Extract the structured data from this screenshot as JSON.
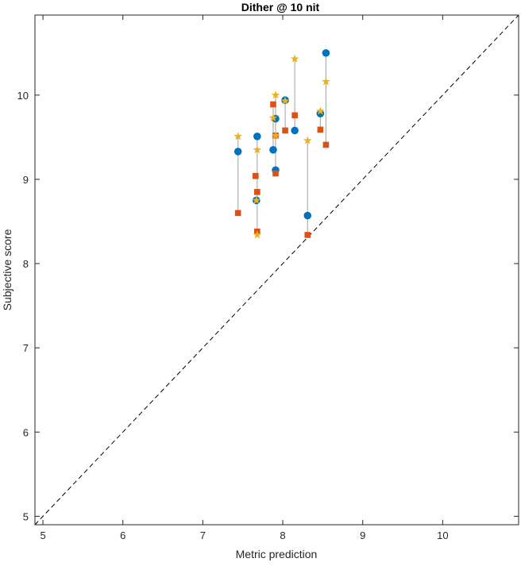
{
  "chart_data": {
    "type": "scatter",
    "title": "Dither @ 10 nit",
    "xlabel": "Metric prediction",
    "ylabel": "Subjective score",
    "xlim": [
      4.9,
      10.95
    ],
    "ylim": [
      4.9,
      10.95
    ],
    "xticks": [
      5,
      6,
      7,
      8,
      9,
      10
    ],
    "yticks": [
      5,
      6,
      7,
      8,
      9,
      10
    ],
    "grid": false,
    "legend": "none",
    "reference_line": {
      "x": [
        4.9,
        10.95
      ],
      "y": [
        4.9,
        10.95
      ],
      "style": "dashed",
      "color": "#000000"
    },
    "series": [
      {
        "marker": "circle",
        "color": "#0072BD",
        "points": [
          [
            7.44,
            9.33
          ],
          [
            7.68,
            9.51
          ],
          [
            7.67,
            8.75
          ],
          [
            7.88,
            9.35
          ],
          [
            7.91,
            9.72
          ],
          [
            7.91,
            9.11
          ],
          [
            8.03,
            9.94
          ],
          [
            8.15,
            9.58
          ],
          [
            8.31,
            8.57
          ],
          [
            8.47,
            9.78
          ],
          [
            8.54,
            10.5
          ]
        ]
      },
      {
        "marker": "square",
        "color": "#D95319",
        "points": [
          [
            7.44,
            8.6
          ],
          [
            7.66,
            9.04
          ],
          [
            7.68,
            8.85
          ],
          [
            7.68,
            8.38
          ],
          [
            7.88,
            9.89
          ],
          [
            7.91,
            9.52
          ],
          [
            7.91,
            9.07
          ],
          [
            8.03,
            9.58
          ],
          [
            8.15,
            9.76
          ],
          [
            8.31,
            8.34
          ],
          [
            8.47,
            9.59
          ],
          [
            8.54,
            9.41
          ]
        ]
      },
      {
        "marker": "star",
        "color": "#EDB120",
        "points": [
          [
            7.44,
            9.51
          ],
          [
            7.68,
            9.35
          ],
          [
            7.67,
            8.75
          ],
          [
            7.68,
            8.34
          ],
          [
            7.88,
            9.73
          ],
          [
            7.91,
            10.0
          ],
          [
            7.91,
            9.52
          ],
          [
            8.03,
            9.93
          ],
          [
            8.15,
            10.43
          ],
          [
            8.31,
            9.46
          ],
          [
            8.47,
            9.81
          ],
          [
            8.54,
            10.16
          ]
        ]
      }
    ],
    "connectors": {
      "color": "#B0B0B0",
      "segments": [
        {
          "x": 7.44,
          "y": [
            8.6,
            9.51
          ]
        },
        {
          "x": 7.68,
          "y": [
            8.34,
            9.51
          ]
        },
        {
          "x": 7.88,
          "y": [
            9.35,
            9.89
          ]
        },
        {
          "x": 7.91,
          "y": [
            9.07,
            10.0
          ]
        },
        {
          "x": 8.03,
          "y": [
            9.58,
            9.94
          ]
        },
        {
          "x": 8.15,
          "y": [
            9.58,
            10.43
          ]
        },
        {
          "x": 8.31,
          "y": [
            8.34,
            9.46
          ]
        },
        {
          "x": 8.47,
          "y": [
            9.59,
            9.81
          ]
        },
        {
          "x": 8.54,
          "y": [
            9.41,
            10.5
          ]
        }
      ]
    }
  }
}
